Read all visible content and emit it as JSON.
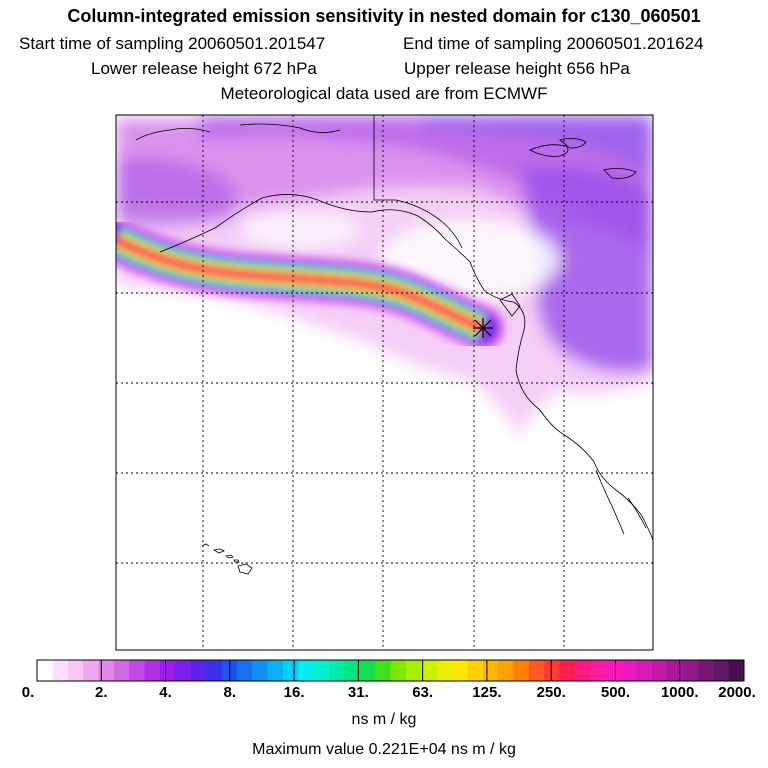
{
  "title": "Column-integrated emission sensitivity in nested domain for c130_060501",
  "start_label": "Start time of sampling 20060501.201547",
  "end_label": "End time of sampling 20060501.201624",
  "lower_label": "Lower release height  672 hPa",
  "upper_label": "Upper release height  656 hPa",
  "met_label": "Meteorological data used are from ECMWF",
  "colorbar": {
    "ticks": [
      "0.",
      "2.",
      "4.",
      "8.",
      "16.",
      "31.",
      "63.",
      "125.",
      "250.",
      "500.",
      "1000.",
      "2000."
    ],
    "colors": [
      "#ffffff",
      "#fbe0fb",
      "#f6c8f6",
      "#eeaaf0",
      "#e08ae8",
      "#d26ae4",
      "#c24ae4",
      "#b030e6",
      "#9a20e8",
      "#7a20ea",
      "#5c22ea",
      "#3a30ea",
      "#2050ee",
      "#1870f0",
      "#1090f2",
      "#08b0f4",
      "#00d0f6",
      "#00eef0",
      "#00f0d0",
      "#00eca8",
      "#00e680",
      "#10e050",
      "#40e020",
      "#80e800",
      "#a8ee00",
      "#c8f000",
      "#e8f000",
      "#ffe800",
      "#ffd000",
      "#ffb800",
      "#ffa000",
      "#ff8000",
      "#ff5a20",
      "#ff3838",
      "#ff1e4e",
      "#ff1a80",
      "#ff1aa0",
      "#f81ab8",
      "#e81ac0",
      "#d81ab8",
      "#c21aa8",
      "#a8189a",
      "#90188a",
      "#781878",
      "#601868",
      "#481050"
    ],
    "units": "ns m / kg"
  },
  "max_value_label": "Maximum value  0.221E+04 ns m / kg",
  "map": {
    "release_marker": "star-icon",
    "graticule": "dashed",
    "plume_colors": [
      "#e070f0",
      "#7a30ea",
      "#00d0f4",
      "#40e020",
      "#ffe800",
      "#ff4040",
      "#ff1a80"
    ]
  }
}
